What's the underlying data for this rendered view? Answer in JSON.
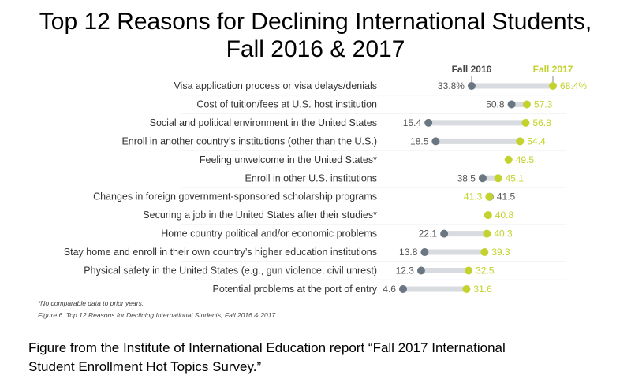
{
  "chart_data": {
    "type": "dumbbell",
    "title_line1": "Top 12 Reasons for Declining International Students,",
    "title_line2": "Fall 2016 & 2017",
    "series": [
      {
        "name": "Fall 2016",
        "color": "#6b7683"
      },
      {
        "name": "Fall 2017",
        "color": "#c3d22c"
      }
    ],
    "categories": [
      "Visa application process or visa delays/denials",
      "Cost of tuition/fees at U.S. host institution",
      "Social and political environment in the United States",
      "Enroll in another country’s institutions (other than the U.S.)",
      "Feeling unwelcome in the United States*",
      "Enroll in other U.S. institutions",
      "Changes in foreign government-sponsored scholarship programs",
      "Securing a job in the United States after their studies*",
      "Home country political and/or economic problems",
      "Stay home and enroll in their own country’s higher education institutions",
      "Physical safety in the United States (e.g., gun violence, civil unrest)",
      "Potential problems at the port of entry"
    ],
    "fall_2016": [
      33.8,
      50.8,
      15.4,
      18.5,
      null,
      38.5,
      41.5,
      null,
      22.1,
      13.8,
      12.3,
      4.6
    ],
    "fall_2017": [
      68.4,
      57.3,
      56.8,
      54.4,
      49.5,
      45.1,
      41.3,
      40.8,
      40.3,
      39.3,
      32.5,
      31.6
    ],
    "labels_2016": [
      "33.8%",
      "50.8",
      "15.4",
      "18.5",
      "",
      "38.5",
      "41.5",
      "",
      "22.1",
      "13.8",
      "12.3",
      "4.6"
    ],
    "labels_2017": [
      "68.4%",
      "57.3",
      "56.8",
      "54.4",
      "49.5",
      "45.1",
      "41.3",
      "40.8",
      "40.3",
      "39.3",
      "32.5",
      "31.6"
    ],
    "unit": "%",
    "footnote": "*No comparable data to prior years.",
    "figure_caption": "Figure 6. Top 12 Reasons for Declining International Students, Fall 2016 & 2017"
  },
  "caption_line1": "Figure from the Institute of International Education report “Fall 2017 International",
  "caption_line2": "Student Enrollment Hot Topics Survey.”"
}
